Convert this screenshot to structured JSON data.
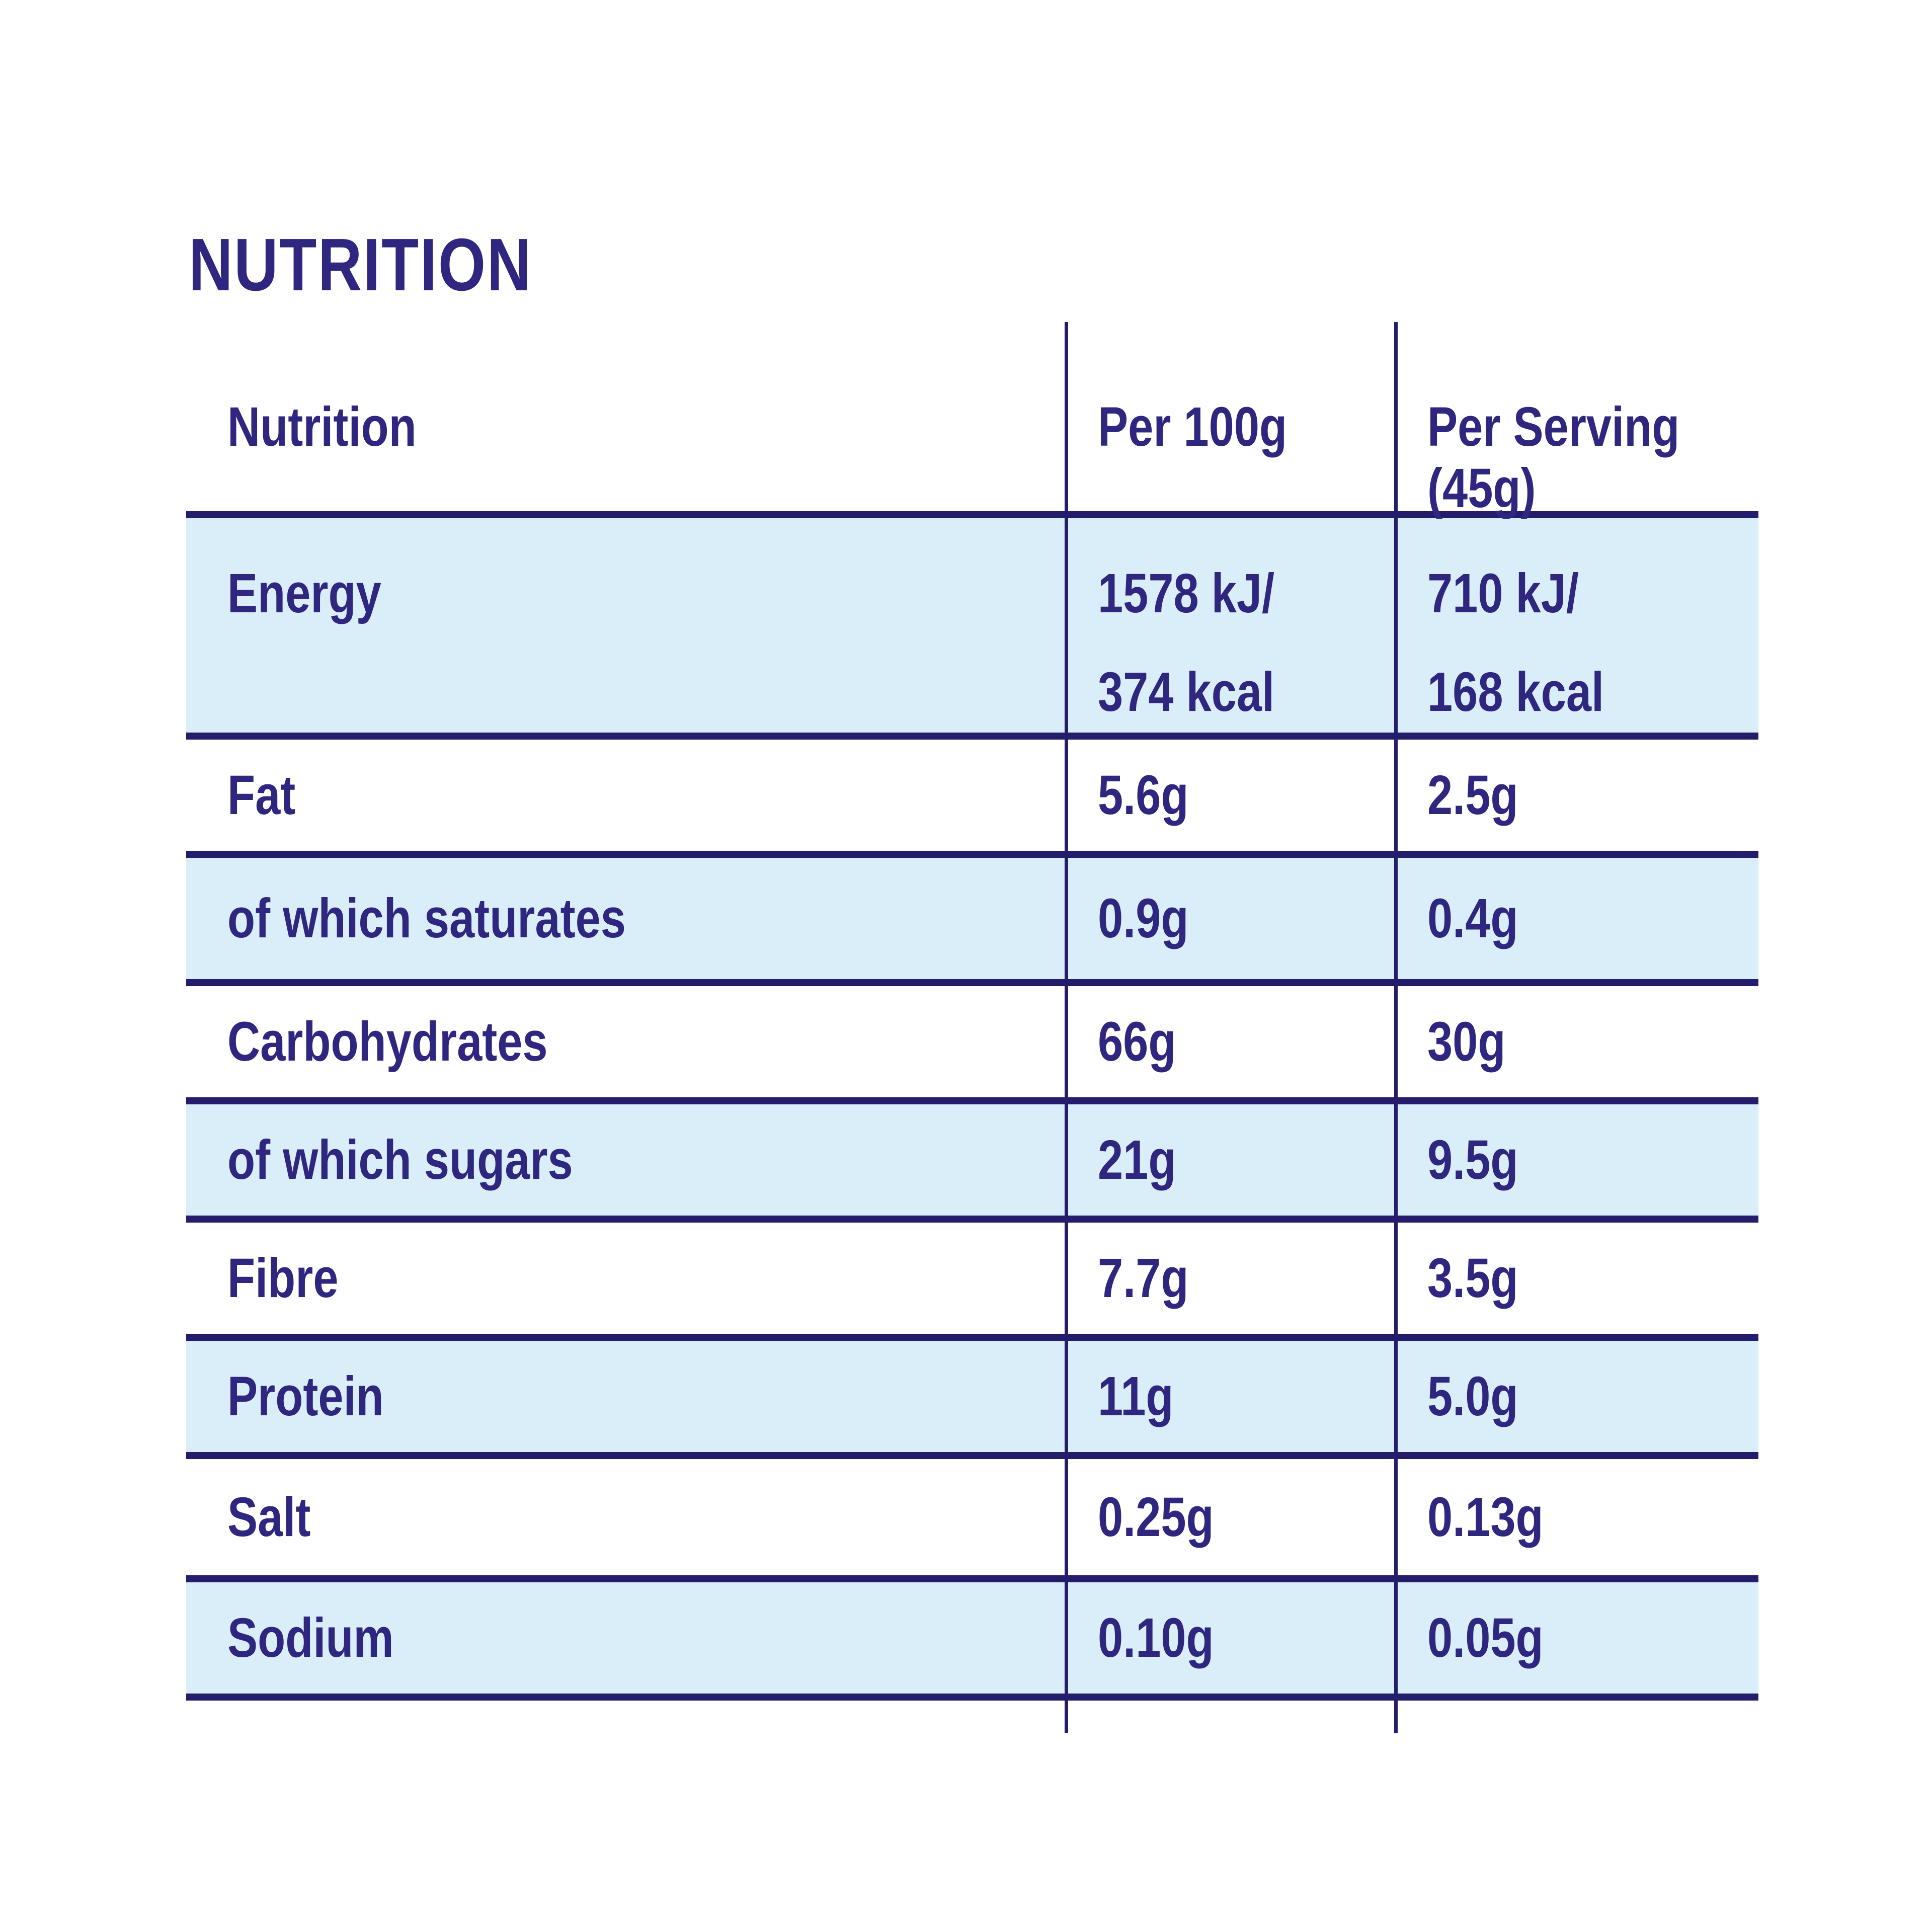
{
  "title": "NUTRITION",
  "colors": {
    "text_navy": "#2f2680",
    "rule_navy": "#241d6b",
    "row_highlight_blue": "#d9eef8",
    "background": "#ffffff"
  },
  "table": {
    "headers": [
      "Nutrition",
      "Per 100g",
      "Per Serving (45g)"
    ],
    "rows": [
      {
        "label": "Energy",
        "per_100g_lines": [
          "1578 kJ/",
          "374 kcal"
        ],
        "per_serving_lines": [
          "710 kJ/",
          "168 kcal"
        ],
        "highlighted": true
      },
      {
        "label": "Fat",
        "per_100g": "5.6g",
        "per_serving": "2.5g",
        "highlighted": false
      },
      {
        "label": "of which saturates",
        "per_100g": "0.9g",
        "per_serving": "0.4g",
        "highlighted": true
      },
      {
        "label": "Carbohydrates",
        "per_100g": "66g",
        "per_serving": "30g",
        "highlighted": false
      },
      {
        "label": "of which sugars",
        "per_100g": "21g",
        "per_serving": "9.5g",
        "highlighted": true
      },
      {
        "label": "Fibre",
        "per_100g": "7.7g",
        "per_serving": "3.5g",
        "highlighted": false
      },
      {
        "label": "Protein",
        "per_100g": "11g",
        "per_serving": "5.0g",
        "highlighted": true
      },
      {
        "label": "Salt",
        "per_100g": "0.25g",
        "per_serving": "0.13g",
        "highlighted": false
      },
      {
        "label": "Sodium",
        "per_100g": "0.10g",
        "per_serving": "0.05g",
        "highlighted": true
      }
    ]
  }
}
